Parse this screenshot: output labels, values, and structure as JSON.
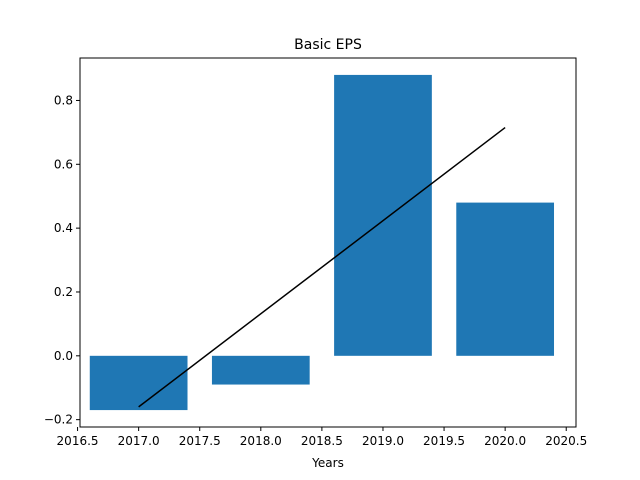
{
  "chart_data": {
    "type": "bar",
    "title": "Basic EPS",
    "xlabel": "Years",
    "ylabel": "",
    "x": [
      2017,
      2018,
      2019,
      2020
    ],
    "values": [
      -0.17,
      -0.09,
      0.88,
      0.48
    ],
    "trend_line": {
      "x": [
        2017,
        2020
      ],
      "y": [
        -0.16,
        0.715
      ]
    },
    "xlim": [
      2016.52,
      2020.58
    ],
    "ylim": [
      -0.223,
      0.933
    ],
    "xticks": [
      "2016.5",
      "2017.0",
      "2017.5",
      "2018.0",
      "2018.5",
      "2019.0",
      "2019.5",
      "2020.0",
      "2020.5"
    ],
    "yticks": [
      "−0.2",
      "0.0",
      "0.2",
      "0.4",
      "0.6",
      "0.8"
    ],
    "grid": false,
    "colors": {
      "bar": "#1f77b4",
      "trend": "#000000"
    }
  }
}
